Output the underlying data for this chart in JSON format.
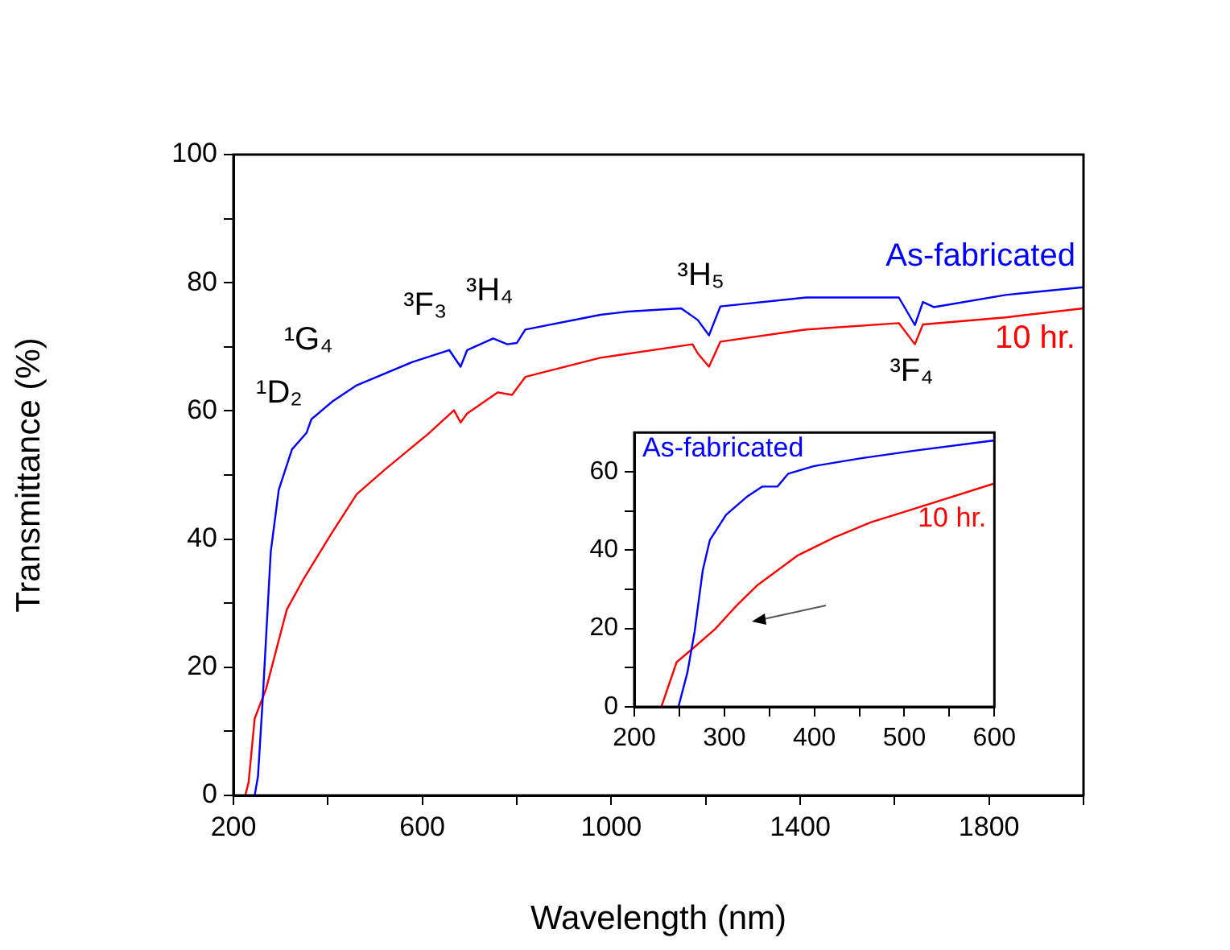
{
  "chart_data": [
    {
      "type": "line",
      "xlabel": "Wavelength (nm)",
      "ylabel": "Transmittance (%)",
      "xlim": [
        200,
        2000
      ],
      "xticks": [
        200,
        {
          "value": 400,
          "label": null
        },
        600,
        {
          "value": 800,
          "label": null
        },
        1000,
        {
          "value": 1200,
          "label": null
        },
        1400,
        {
          "value": 1600,
          "label": null
        },
        1800,
        {
          "value": 2000,
          "label": null
        }
      ],
      "ylim": [
        0,
        100
      ],
      "yticks": [
        0,
        {
          "value": 10,
          "label": null
        },
        20,
        {
          "value": 30,
          "label": null
        },
        40,
        {
          "value": 50,
          "label": null
        },
        60,
        {
          "value": 70,
          "label": null
        },
        80,
        {
          "value": 90,
          "label": null
        },
        100
      ],
      "grid": false,
      "legend": false,
      "marker": "none",
      "line_style": "solid",
      "series": [
        {
          "name": "As-fabricated",
          "color": "#0000ff",
          "x": [
            245,
            252,
            262,
            279,
            296,
            324,
            355,
            365,
            410,
            461,
            578,
            657,
            681,
            695,
            750,
            780,
            800,
            818,
            977,
            1035,
            1148,
            1183,
            1207,
            1231,
            1413,
            1609,
            1643,
            1660,
            1683,
            1835,
            2000
          ],
          "values": [
            0,
            3,
            15,
            38,
            47.7,
            54,
            56.6,
            58.7,
            61.5,
            64,
            67.6,
            69.5,
            66.9,
            69.5,
            71.3,
            70.4,
            70.6,
            72.7,
            75,
            75.5,
            76,
            74.2,
            71.8,
            76.3,
            77.7,
            77.7,
            73.4,
            77,
            76.2,
            78.1,
            79.3
          ]
        },
        {
          "name": "10 hr.",
          "color": "#ff0000",
          "x": [
            225,
            232,
            245,
            269,
            313,
            348,
            406,
            461,
            520,
            612,
            667,
            681,
            695,
            760,
            790,
            818,
            977,
            1172,
            1183,
            1207,
            1231,
            1413,
            1609,
            1643,
            1660,
            1835,
            2000
          ],
          "values": [
            0,
            2,
            12,
            16.6,
            29,
            33.7,
            40.7,
            47,
            50.8,
            56.4,
            60.1,
            58.2,
            59.6,
            62.9,
            62.5,
            65.3,
            68.3,
            70.4,
            69,
            66.9,
            70.8,
            72.7,
            73.7,
            70.4,
            73.5,
            74.6,
            76
          ]
        }
      ],
      "annotations": [
        {
          "text": "¹D₂",
          "x": 355,
          "y": 56.6
        },
        {
          "text": "¹G₄",
          "x": 461,
          "y": 64
        },
        {
          "text": "³F₃",
          "x": 681,
          "y": 66.9
        },
        {
          "text": "³H₄",
          "x": 780,
          "y": 70.4
        },
        {
          "text": "³H₅",
          "x": 1207,
          "y": 71.8
        },
        {
          "text": "³F₄",
          "x": 1643,
          "y": 70.4
        }
      ]
    },
    {
      "type": "line",
      "xlim": [
        200,
        600
      ],
      "xticks": [
        200,
        {
          "value": 250,
          "label": null
        },
        300,
        {
          "value": 350,
          "label": null
        },
        400,
        {
          "value": 450,
          "label": null
        },
        500,
        {
          "value": 550,
          "label": null
        },
        600
      ],
      "ylim": [
        0,
        70
      ],
      "yticks": [
        0,
        {
          "value": 10,
          "label": null
        },
        20,
        {
          "value": 30,
          "label": null
        },
        40,
        {
          "value": 50,
          "label": null
        },
        60
      ],
      "grid": false,
      "legend": false,
      "marker": "none",
      "line_style": "solid",
      "series": [
        {
          "name": "As-fabricated",
          "color": "#0000ff",
          "x": [
            249,
            259,
            267,
            276,
            284,
            302,
            325,
            342,
            359,
            371,
            399,
            451,
            509,
            600
          ],
          "values": [
            0,
            8.8,
            19.2,
            34.8,
            42.6,
            49,
            53.6,
            56.2,
            56.2,
            59.5,
            61.4,
            63.4,
            65.3,
            68
          ]
        },
        {
          "name": "10 hr.",
          "color": "#ff0000",
          "x": [
            230,
            247,
            267,
            290,
            313,
            336,
            359,
            382,
            422,
            463,
            509,
            600
          ],
          "values": [
            0,
            11.4,
            15.3,
            19.9,
            25.7,
            30.9,
            34.8,
            38.7,
            43.2,
            47.1,
            50.4,
            57
          ]
        }
      ]
    }
  ]
}
